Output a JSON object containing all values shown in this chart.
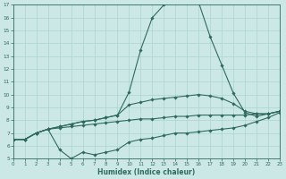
{
  "xlabel": "Humidex (Indice chaleur)",
  "bg_color": "#cce8e6",
  "line_color": "#2d6b5e",
  "grid_color": "#aad4d0",
  "ylim": [
    5,
    17
  ],
  "xlim": [
    0,
    23
  ],
  "yticks": [
    5,
    6,
    7,
    8,
    9,
    10,
    11,
    12,
    13,
    14,
    15,
    16,
    17
  ],
  "xticks": [
    0,
    1,
    2,
    3,
    4,
    5,
    6,
    7,
    8,
    9,
    10,
    11,
    12,
    13,
    14,
    15,
    16,
    17,
    18,
    19,
    20,
    21,
    22,
    23
  ],
  "line1_x": [
    0,
    1,
    2,
    3,
    4,
    5,
    6,
    7,
    8,
    9,
    10,
    11,
    12,
    13,
    14,
    15,
    16,
    17,
    18,
    19,
    20,
    21,
    22,
    23
  ],
  "line1_y": [
    6.5,
    6.5,
    7.0,
    7.3,
    7.5,
    7.7,
    7.9,
    8.0,
    8.2,
    8.4,
    10.2,
    13.5,
    16.0,
    17.0,
    17.2,
    17.2,
    17.2,
    14.5,
    12.3,
    10.1,
    8.6,
    8.3,
    8.5,
    8.7
  ],
  "line2_x": [
    0,
    1,
    2,
    3,
    4,
    5,
    6,
    7,
    8,
    9,
    10,
    11,
    12,
    13,
    14,
    15,
    16,
    17,
    18,
    19,
    20,
    21,
    22,
    23
  ],
  "line2_y": [
    6.5,
    6.5,
    7.0,
    7.3,
    7.5,
    7.7,
    7.9,
    8.0,
    8.2,
    8.4,
    9.2,
    9.4,
    9.6,
    9.7,
    9.8,
    9.9,
    10.0,
    9.9,
    9.7,
    9.3,
    8.7,
    8.5,
    8.5,
    8.7
  ],
  "line3_x": [
    0,
    1,
    2,
    3,
    4,
    5,
    6,
    7,
    8,
    9,
    10,
    11,
    12,
    13,
    14,
    15,
    16,
    17,
    18,
    19,
    20,
    21,
    22,
    23
  ],
  "line3_y": [
    6.5,
    6.5,
    7.0,
    7.3,
    7.4,
    7.5,
    7.6,
    7.7,
    7.8,
    7.9,
    8.0,
    8.1,
    8.1,
    8.2,
    8.3,
    8.3,
    8.4,
    8.4,
    8.4,
    8.4,
    8.4,
    8.5,
    8.5,
    8.7
  ],
  "line4_x": [
    0,
    1,
    2,
    3,
    4,
    5,
    6,
    7,
    8,
    9,
    10,
    11,
    12,
    13,
    14,
    15,
    16,
    17,
    18,
    19,
    20,
    21,
    22,
    23
  ],
  "line4_y": [
    6.5,
    6.5,
    7.0,
    7.3,
    5.7,
    5.0,
    5.5,
    5.3,
    5.5,
    5.7,
    6.3,
    6.5,
    6.6,
    6.8,
    7.0,
    7.0,
    7.1,
    7.2,
    7.3,
    7.4,
    7.6,
    7.9,
    8.2,
    8.6
  ]
}
